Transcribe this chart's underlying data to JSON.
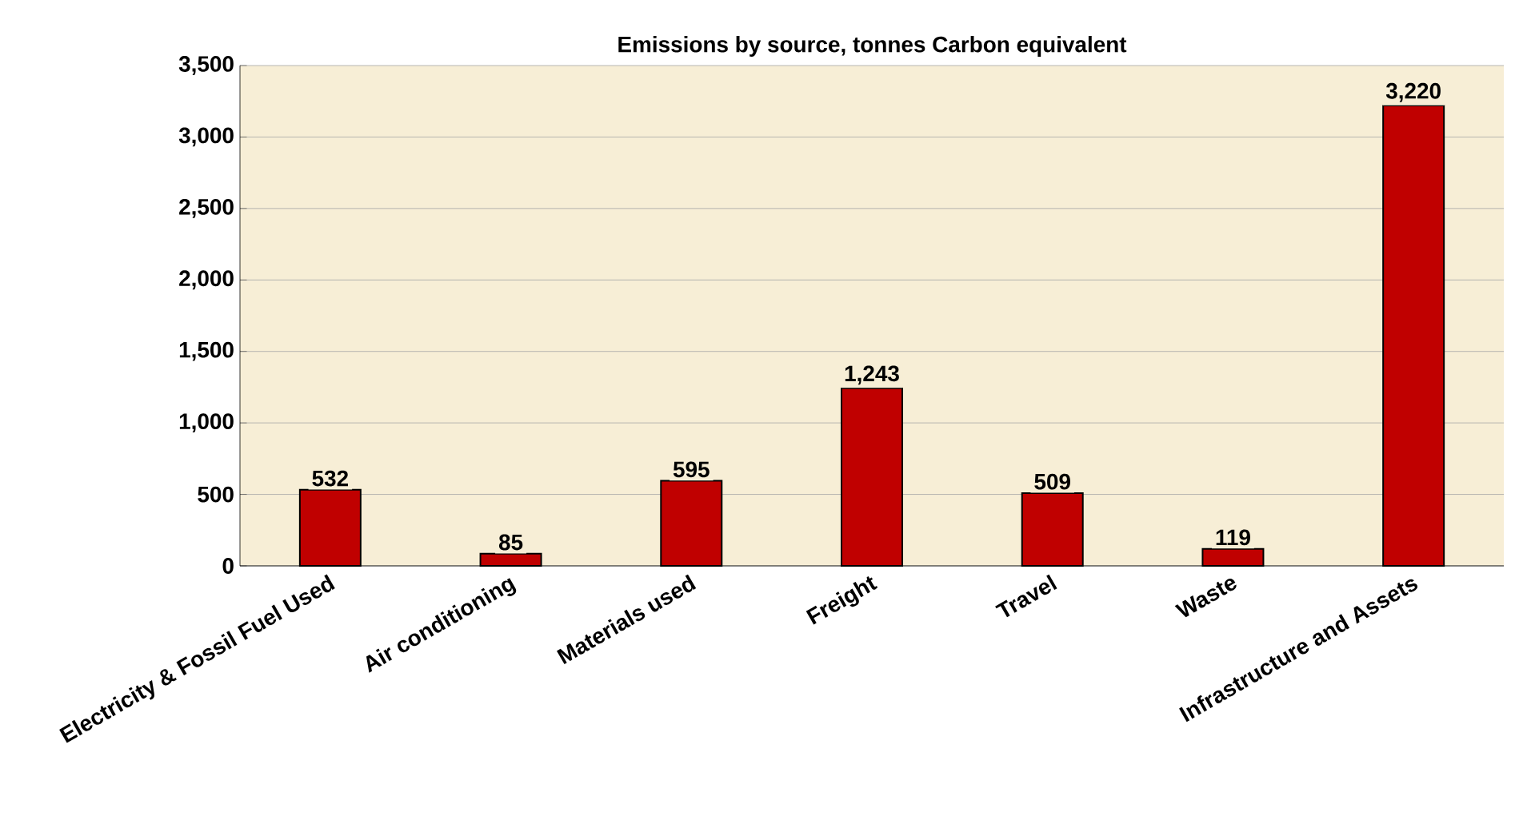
{
  "chart_data": {
    "type": "bar",
    "title": "Emissions by source, tonnes Carbon equivalent",
    "categories": [
      "Electricity & Fossil Fuel Used",
      "Air conditioning",
      "Materials used",
      "Freight",
      "Travel",
      "Waste",
      "Infrastructure and Assets"
    ],
    "values": [
      532,
      85,
      595,
      1243,
      509,
      119,
      3220
    ],
    "value_labels": [
      "532",
      "85",
      "595",
      "1,243",
      "509",
      "119",
      "3,220"
    ],
    "color": "#c00000",
    "ylim": [
      0,
      3500
    ],
    "yticks": [
      0,
      500,
      {
        "value": 1000,
        "label": "1,000"
      },
      {
        "value": 1500,
        "label": "1,500"
      },
      {
        "value": 2000,
        "label": "2,000"
      },
      {
        "value": 2500,
        "label": "2,500"
      },
      {
        "value": 3000,
        "label": "3,000"
      },
      {
        "value": 3500,
        "label": "3,500"
      }
    ],
    "grid": "y"
  }
}
